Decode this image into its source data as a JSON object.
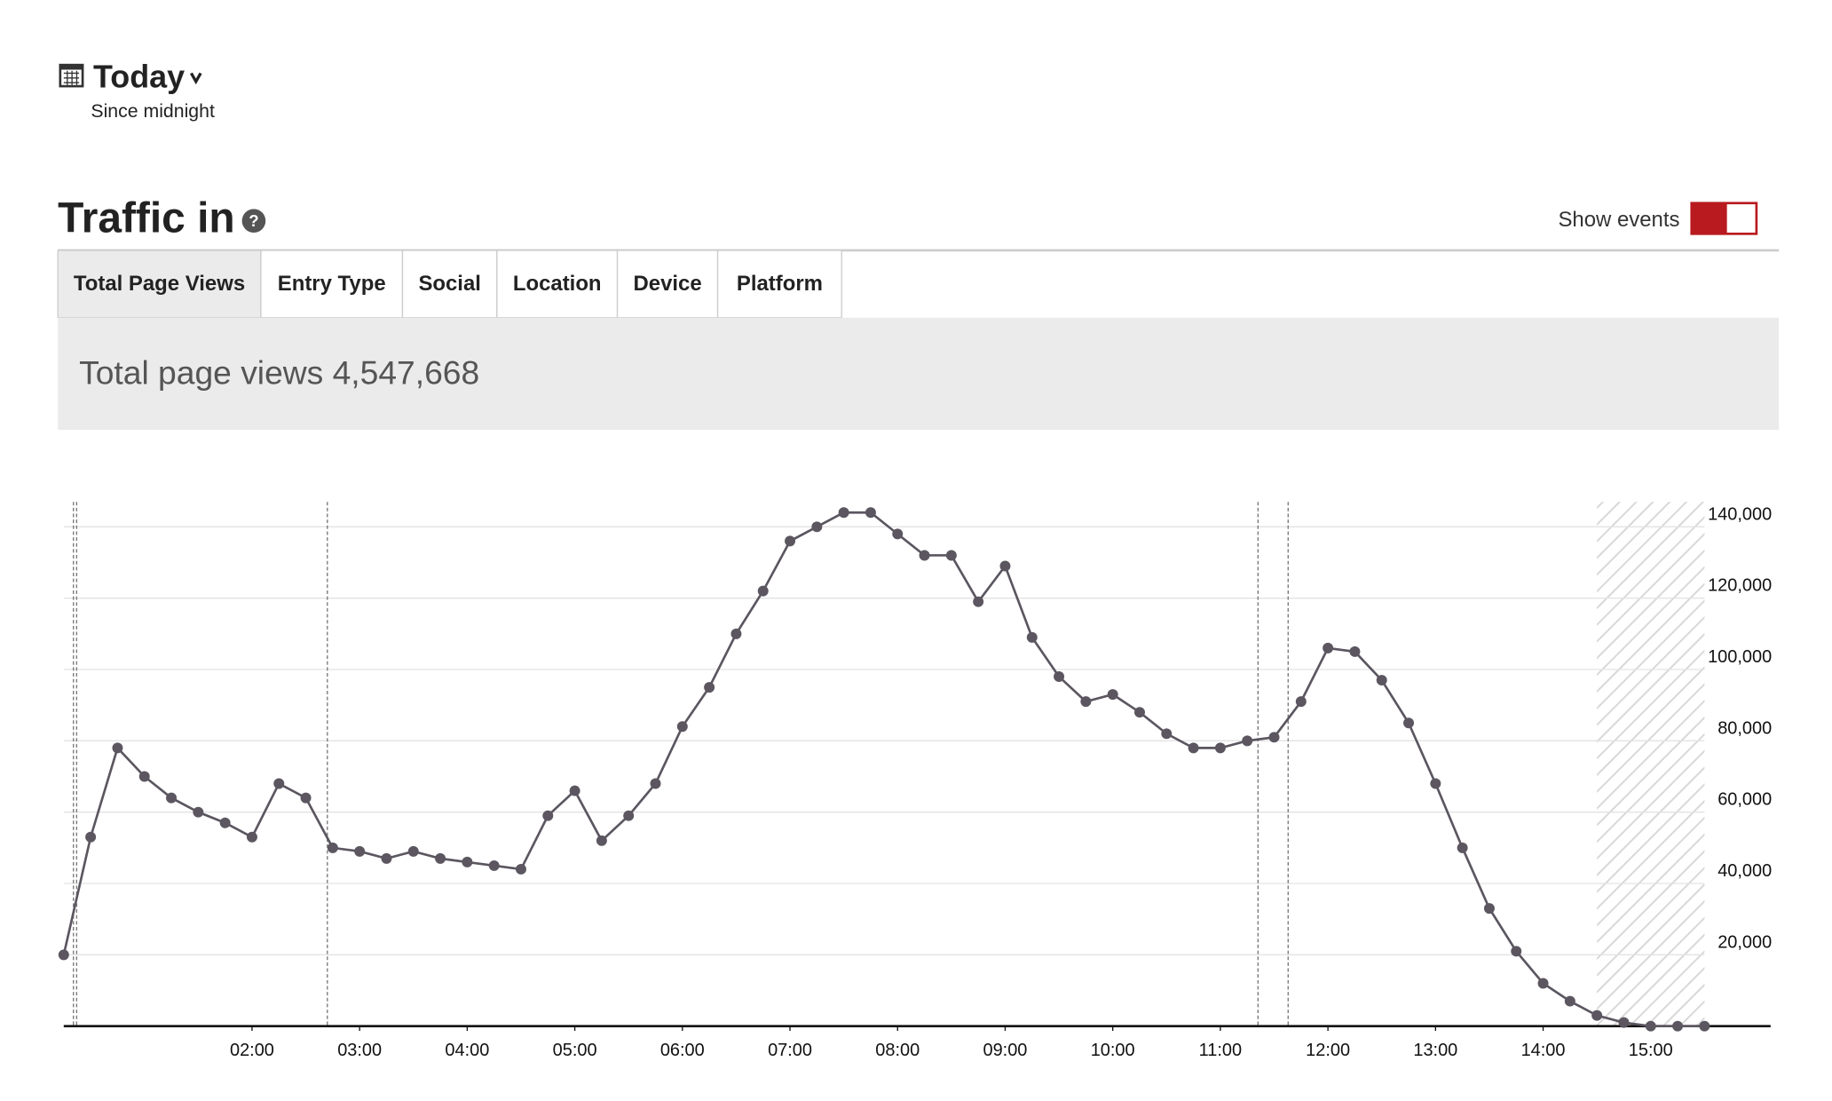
{
  "header": {
    "title": "Today",
    "subtitle": "Since midnight"
  },
  "section": {
    "title": "Traffic in",
    "toggle_label": "Show events",
    "tabs": [
      "Total Page Views",
      "Entry Type",
      "Social",
      "Location",
      "Device",
      "Platform"
    ],
    "summary": "Total page views 4,547,668"
  },
  "chart_data": {
    "type": "line",
    "x": [
      0.25,
      0.5,
      0.75,
      1,
      1.25,
      1.5,
      1.75,
      2,
      2.25,
      2.5,
      2.75,
      3,
      3.25,
      3.5,
      3.75,
      4,
      4.25,
      4.5,
      4.75,
      5,
      5.25,
      5.5,
      5.75,
      6,
      6.25,
      6.5,
      6.75,
      7,
      7.25,
      7.5,
      7.75,
      8,
      8.25,
      8.5,
      8.75,
      9,
      9.25,
      9.5,
      9.75,
      10,
      10.25,
      10.5,
      10.75,
      11,
      11.25,
      11.5,
      11.75,
      12,
      12.25,
      12.5,
      12.75,
      13,
      13.25,
      13.5,
      13.75,
      14,
      14.25,
      14.5,
      14.75,
      15,
      15.25,
      15.5
    ],
    "series": [
      {
        "name": "Total page views",
        "color": "#5b5660",
        "values": [
          20000,
          53000,
          78000,
          70000,
          64000,
          60000,
          57000,
          53000,
          68000,
          64000,
          50000,
          49000,
          47000,
          49000,
          47000,
          46000,
          45000,
          44000,
          59000,
          66000,
          52000,
          59000,
          68000,
          84000,
          95000,
          110000,
          122000,
          136000,
          140000,
          144000,
          144000,
          138000,
          132000,
          132000,
          119000,
          129000,
          109000,
          98000,
          91000,
          93000,
          88000,
          82000,
          78000,
          78000,
          80000,
          81000,
          91000,
          106000,
          105000,
          97000,
          85000,
          68000,
          50000,
          33000,
          21000,
          12000,
          7000,
          3000,
          1000,
          0,
          0,
          0
        ]
      }
    ],
    "xlim": [
      0.25,
      15.5
    ],
    "xticks": [
      {
        "value": 2,
        "label": "02:00"
      },
      {
        "value": 3,
        "label": "03:00"
      },
      {
        "value": 4,
        "label": "04:00"
      },
      {
        "value": 5,
        "label": "05:00"
      },
      {
        "value": 6,
        "label": "06:00"
      },
      {
        "value": 7,
        "label": "07:00"
      },
      {
        "value": 8,
        "label": "08:00"
      },
      {
        "value": 9,
        "label": "09:00"
      },
      {
        "value": 10,
        "label": "10:00"
      },
      {
        "value": 11,
        "label": "11:00"
      },
      {
        "value": 12,
        "label": "12:00"
      },
      {
        "value": 13,
        "label": "13:00"
      },
      {
        "value": 14,
        "label": "14:00"
      },
      {
        "value": 15,
        "label": "15:00"
      }
    ],
    "ylim": [
      0,
      147000
    ],
    "yticks": [
      {
        "value": 20000,
        "label": "20,000"
      },
      {
        "value": 40000,
        "label": "40,000"
      },
      {
        "value": 60000,
        "label": "60,000"
      },
      {
        "value": 80000,
        "label": "80,000"
      },
      {
        "value": 100000,
        "label": "100,000"
      },
      {
        "value": 120000,
        "label": "120,000"
      },
      {
        "value": 140000,
        "label": "140,000"
      }
    ],
    "grid": true,
    "event_lines": [
      0.34,
      0.37,
      2.7,
      11.35,
      11.63
    ],
    "shaded_range": [
      14.5,
      15.5
    ]
  }
}
